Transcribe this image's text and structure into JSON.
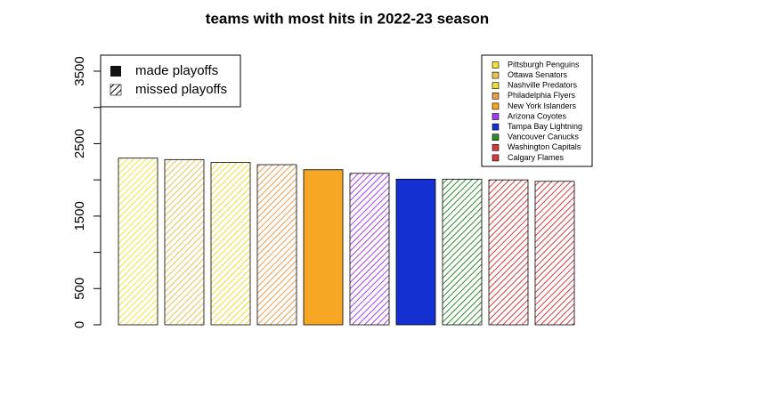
{
  "chart_data": {
    "type": "bar",
    "title": "teams with most hits in 2022-23 season",
    "categories": [
      "Pittsburgh Penguins",
      "Ottawa Senators",
      "Nashville Predators",
      "Philadelphia Flyers",
      "New York Islanders",
      "Arizona Coyotes",
      "Tampa Bay Lightning",
      "Vancouver Canucks",
      "Washington Capitals",
      "Calgary Flames"
    ],
    "values": [
      2300,
      2280,
      2240,
      2210,
      2140,
      2090,
      2010,
      2010,
      2000,
      1980
    ],
    "colors": [
      "#f2e33a",
      "#e8c452",
      "#eedd33",
      "#ec9d4c",
      "#f5a623",
      "#a43ef0",
      "#1530d0",
      "#2e8b2e",
      "#d63a3a",
      "#d63a3a"
    ],
    "made_playoffs": [
      false,
      false,
      false,
      false,
      true,
      false,
      true,
      false,
      false,
      false
    ],
    "playoff_legend": [
      "made playoffs",
      "missed playoffs"
    ],
    "ylim": [
      0,
      3500
    ],
    "yticks": [
      0,
      500,
      1500,
      2500,
      3500
    ],
    "minor_yticks": [
      1000,
      2000,
      3000
    ]
  }
}
